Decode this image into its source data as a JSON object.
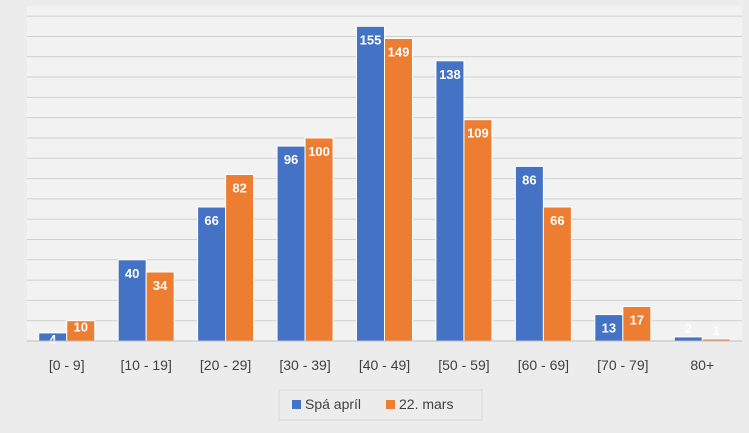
{
  "chart_data": {
    "type": "bar",
    "categories": [
      "[0 - 9]",
      "[10 - 19]",
      "[20 - 29]",
      "[30 - 39]",
      "[40 - 49]",
      "[50 - 59]",
      "[60 - 69]",
      "[70 - 79]",
      "80+"
    ],
    "series": [
      {
        "name": "Spá apríl",
        "color": "#4472c4",
        "values": [
          4,
          40,
          66,
          96,
          155,
          138,
          86,
          13,
          2
        ]
      },
      {
        "name": "22. mars",
        "color": "#ed7d31",
        "values": [
          10,
          34,
          82,
          100,
          149,
          109,
          66,
          17,
          1
        ]
      }
    ],
    "ylim": [
      0,
      165
    ],
    "grid": true,
    "legend_position": "bottom-center"
  },
  "colors": {
    "background": "#ececec",
    "plot_background": "#f2f2f2",
    "gridline": "#d0d0d0",
    "data_label": "#ffffff"
  }
}
